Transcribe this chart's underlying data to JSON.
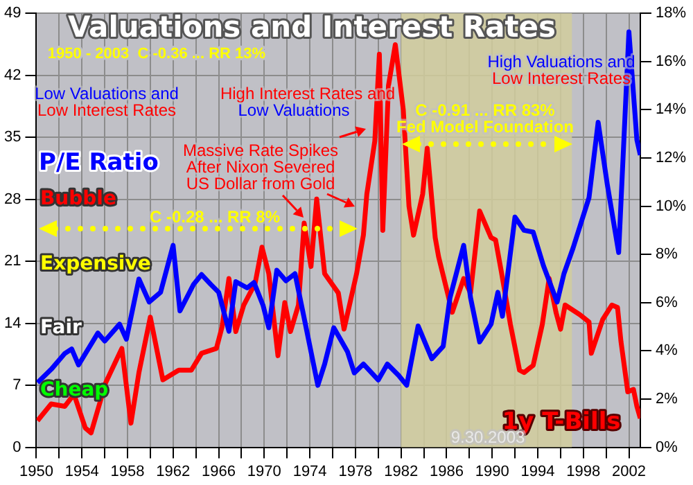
{
  "chart_data": {
    "type": "line",
    "title": "Valuations and Interest Rates",
    "subtitle": "1950 - 2003  C -0.36 ... RR 13%",
    "ylabel": "P/E Ratio",
    "y2label": "1y T-Bills",
    "xlim": [
      1950,
      2003
    ],
    "xticks": [
      1950,
      {
        "value": 1952,
        "label": null
      },
      1954,
      {
        "value": 1956,
        "label": null
      },
      1958,
      {
        "value": 1960,
        "label": null
      },
      1962,
      {
        "value": 1964,
        "label": null
      },
      1966,
      {
        "value": 1968,
        "label": null
      },
      1970,
      {
        "value": 1972,
        "label": null
      },
      1974,
      {
        "value": 1976,
        "label": null
      },
      1978,
      {
        "value": 1980,
        "label": null
      },
      1982,
      {
        "value": 1984,
        "label": null
      },
      1986,
      {
        "value": 1988,
        "label": null
      },
      1990,
      {
        "value": 1992,
        "label": null
      },
      1994,
      {
        "value": 1996,
        "label": null
      },
      1998,
      {
        "value": 2000,
        "label": null
      },
      2002
    ],
    "ylim": [
      0,
      49
    ],
    "yticks": [
      0,
      7,
      14,
      21,
      28,
      35,
      42,
      49
    ],
    "y2lim": [
      0,
      18
    ],
    "y2ticks": [
      {
        "value": 0,
        "label": "0%"
      },
      {
        "value": 2,
        "label": "2%"
      },
      {
        "value": 4,
        "label": "4%"
      },
      {
        "value": 6,
        "label": "6%"
      },
      {
        "value": 8,
        "label": "8%"
      },
      {
        "value": 10,
        "label": "10%"
      },
      {
        "value": 12,
        "label": "12%"
      },
      {
        "value": 14,
        "label": "14%"
      },
      {
        "value": 16,
        "label": "16%"
      },
      {
        "value": 18,
        "label": "18%"
      }
    ],
    "grid": true,
    "legend": false,
    "marker": "none",
    "line_style": "solid",
    "bands": [
      {
        "axis": "x",
        "from": 1982,
        "to": 1997,
        "color": "#d1cc9c"
      }
    ],
    "series": [
      {
        "color": "#0000ff",
        "x": [
          1950.1,
          1951.3,
          1952.5,
          1953.1,
          1953.7,
          1955.4,
          1956,
          1957.3,
          1957.9,
          1959,
          1959.9,
          1960.9,
          1962,
          1962.6,
          1963.8,
          1964.5,
          1965.3,
          1966,
          1966.9,
          1967.5,
          1968.5,
          1969.1,
          1969.9,
          1970.4,
          1971.1,
          1971.9,
          1972.7,
          1973.5,
          1974.7,
          1975.3,
          1976.1,
          1977.3,
          1977.9,
          1978.7,
          1980,
          1980.8,
          1981.8,
          1982.5,
          1983.5,
          1984.7,
          1985.7,
          1986.3,
          1987.5,
          1988.1,
          1988.9,
          1989.9,
          1990.5,
          1990.9,
          1992,
          1992.8,
          1993.6,
          1994.5,
          1995.7,
          1996.3,
          1997.1,
          1998.5,
          1999.3,
          2000.1,
          2001.1,
          2002,
          2002.7,
          2003
        ],
        "values": [
          7.3,
          8.8,
          10.6,
          11.1,
          9.3,
          12.9,
          12,
          13.9,
          12.2,
          19,
          16.4,
          17.5,
          22.8,
          15.4,
          18.4,
          19.5,
          18.4,
          17.5,
          13.1,
          18.7,
          18,
          18.6,
          16,
          13.5,
          20,
          18.8,
          19.6,
          14.6,
          7,
          9.4,
          13.5,
          10.8,
          8.4,
          9.4,
          7.6,
          9.4,
          8.1,
          7,
          13.7,
          10,
          11.4,
          16.9,
          22.8,
          16.9,
          11.9,
          13.9,
          17.5,
          14.8,
          26,
          24.5,
          24.3,
          20.5,
          16.4,
          19.6,
          22.5,
          28.2,
          36.7,
          29.7,
          22,
          46.9,
          34.7,
          33
        ]
      },
      {
        "color": "#ff0000",
        "axis": "y2",
        "x": [
          1950.1,
          1951.3,
          1952.5,
          1953.3,
          1954.3,
          1954.8,
          1956.1,
          1957.5,
          1958.3,
          1959,
          1960,
          1961.1,
          1962.5,
          1963.6,
          1964.5,
          1965.8,
          1966.3,
          1966.9,
          1967.5,
          1968.2,
          1969.2,
          1969.8,
          1970.4,
          1971.2,
          1971.8,
          1972.3,
          1973,
          1973.5,
          1974.1,
          1974.6,
          1975.3,
          1976.5,
          1977,
          1978.1,
          1978.7,
          1979,
          1979.7,
          1980.1,
          1980.4,
          1980.9,
          1981.5,
          1982.2,
          1982.7,
          1983.1,
          1983.9,
          1984.3,
          1985,
          1985.3,
          1986.5,
          1987.5,
          1988.1,
          1988.9,
          1989.9,
          1990.3,
          1990.8,
          1991.6,
          1992.4,
          1992.8,
          1993.6,
          1994.4,
          1995,
          1995.6,
          1996,
          1996.4,
          1997.7,
          1998.5,
          1998.7,
          1999.7,
          2000.5,
          2001,
          2001.3,
          2001.9,
          2002.4,
          2002.7,
          2003
        ],
        "values": [
          1.1,
          1.8,
          1.7,
          2.2,
          0.8,
          0.6,
          2.7,
          4.1,
          1,
          3.1,
          5.4,
          2.8,
          3.2,
          3.2,
          3.9,
          4.1,
          5,
          7,
          4.8,
          5.9,
          6.8,
          8.3,
          7.2,
          3.8,
          6,
          4.8,
          5.9,
          9.3,
          7.5,
          10.3,
          7.2,
          6.4,
          4.9,
          7.2,
          8.8,
          10.5,
          12.7,
          16.3,
          9,
          15,
          16.7,
          14,
          10,
          8.8,
          10.5,
          12.4,
          8.7,
          7.9,
          5.6,
          7,
          6.4,
          9.8,
          8.7,
          8.6,
          7.3,
          5.1,
          3.2,
          3.1,
          3.4,
          5.1,
          7,
          5.6,
          4.9,
          5.9,
          5.5,
          5.2,
          3.9,
          5.3,
          5.9,
          5.8,
          4.4,
          2.3,
          2.4,
          1.7,
          1.2
        ]
      }
    ],
    "annotations": [
      "Low Valuations and",
      "Low Interest Rates",
      "High Interest Rates and",
      "Low Valuations",
      "Massive Rate Spikes",
      "After Nixon Severed",
      "US Dollar from Gold",
      "C -0.28 ... RR 8%",
      "C -0.91 ... RR 83%",
      "Fed Model Foundation",
      "High Valuations and",
      "Low Interest Rates",
      "9.30.2003",
      "Bubble",
      "Expensive",
      "Fair",
      "Cheap"
    ]
  }
}
